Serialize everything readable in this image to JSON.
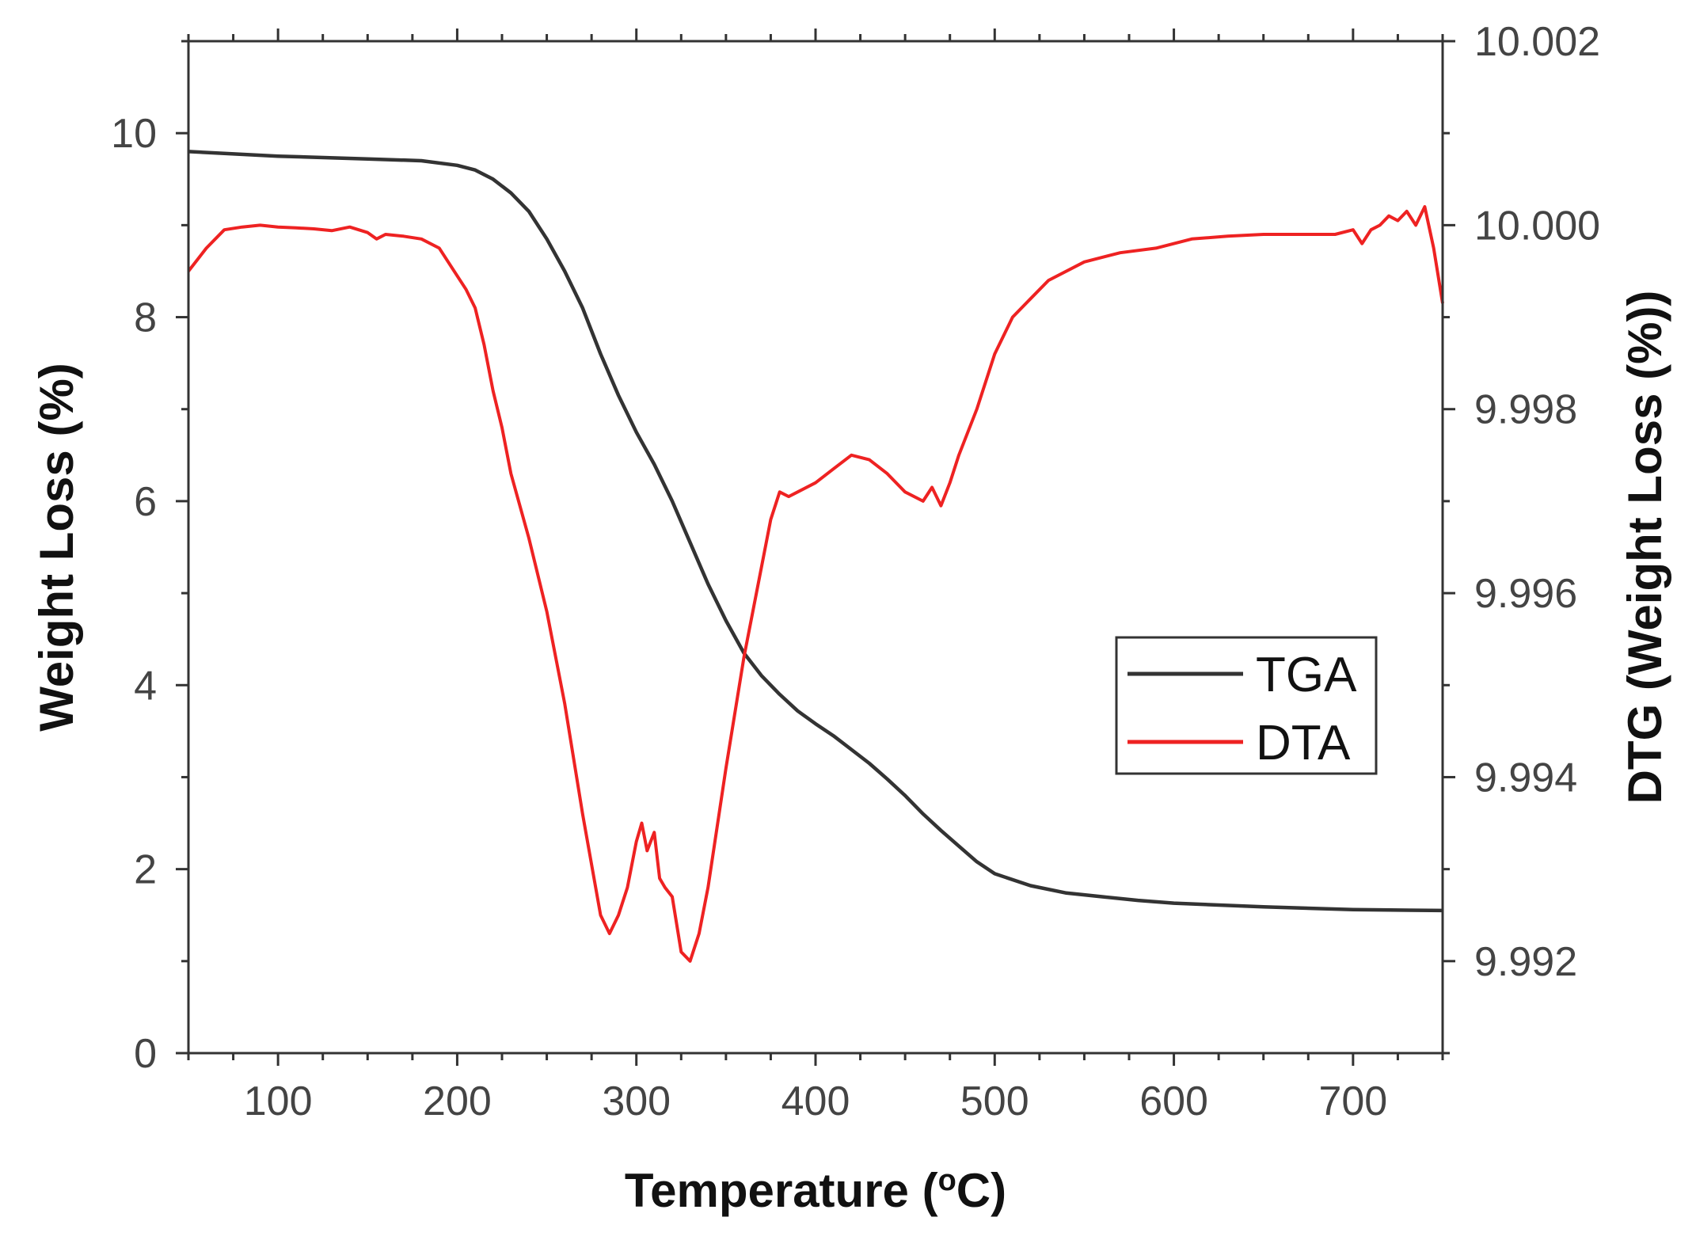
{
  "chart_data": {
    "type": "line",
    "title": "",
    "xlabel": "Temperature (°C)",
    "xlabel_parts": {
      "prefix": "Temperature (",
      "superscript": "o",
      "suffix": "C)"
    },
    "ylabel_left": "Weight Loss (%)",
    "ylabel_right": "DTG (Weight Loss (%))",
    "xlim": [
      50,
      750
    ],
    "ylim_left": [
      0,
      11
    ],
    "ylim_right": [
      9.991,
      10.002
    ],
    "x_ticks": [
      100,
      200,
      300,
      400,
      500,
      600,
      700
    ],
    "x_tick_labels": [
      "100",
      "200",
      "300",
      "400",
      "500",
      "600",
      "700"
    ],
    "y_left_ticks": [
      0,
      2,
      4,
      6,
      8,
      10
    ],
    "y_left_tick_labels": [
      "0",
      "2",
      "4",
      "6",
      "8",
      "10"
    ],
    "y_right_ticks": [
      9.992,
      9.994,
      9.996,
      9.998,
      10.0,
      10.002
    ],
    "y_right_tick_labels": [
      "9.992",
      "9.994",
      "9.996",
      "9.998",
      "10.000",
      "10.002"
    ],
    "grid": false,
    "legend_position": "center-right",
    "series": [
      {
        "name": "TGA",
        "axis": "left",
        "color": "#333333",
        "x": [
          50,
          100,
          150,
          180,
          200,
          210,
          220,
          230,
          240,
          250,
          260,
          270,
          280,
          290,
          300,
          310,
          320,
          330,
          340,
          350,
          360,
          370,
          380,
          390,
          400,
          410,
          420,
          430,
          440,
          450,
          460,
          470,
          480,
          490,
          500,
          520,
          540,
          560,
          580,
          600,
          650,
          700,
          750
        ],
        "y": [
          9.8,
          9.75,
          9.72,
          9.7,
          9.65,
          9.6,
          9.5,
          9.35,
          9.15,
          8.85,
          8.5,
          8.1,
          7.6,
          7.15,
          6.75,
          6.4,
          6.0,
          5.55,
          5.1,
          4.7,
          4.35,
          4.1,
          3.9,
          3.72,
          3.58,
          3.45,
          3.3,
          3.15,
          2.98,
          2.8,
          2.6,
          2.42,
          2.25,
          2.08,
          1.95,
          1.82,
          1.74,
          1.7,
          1.66,
          1.63,
          1.59,
          1.56,
          1.55
        ]
      },
      {
        "name": "DTA",
        "axis": "right",
        "color": "#ee2222",
        "x": [
          50,
          60,
          70,
          80,
          90,
          100,
          110,
          120,
          130,
          140,
          150,
          155,
          160,
          170,
          180,
          190,
          200,
          205,
          210,
          215,
          220,
          225,
          230,
          240,
          250,
          260,
          270,
          280,
          285,
          290,
          295,
          300,
          303,
          306,
          310,
          313,
          316,
          320,
          325,
          330,
          335,
          340,
          350,
          360,
          370,
          375,
          380,
          385,
          390,
          400,
          410,
          420,
          430,
          440,
          450,
          460,
          465,
          470,
          475,
          480,
          490,
          500,
          510,
          520,
          530,
          550,
          570,
          590,
          610,
          630,
          650,
          670,
          690,
          700,
          705,
          710,
          715,
          720,
          725,
          730,
          735,
          740,
          745,
          750
        ],
        "y": [
          9.9995,
          9.99975,
          9.99995,
          9.99998,
          10.0,
          9.99998,
          9.99997,
          9.99996,
          9.99994,
          9.99998,
          9.99992,
          9.99985,
          9.9999,
          9.99988,
          9.99985,
          9.99975,
          9.99945,
          9.9993,
          9.9991,
          9.9987,
          9.9982,
          9.9978,
          9.9973,
          9.9966,
          9.9958,
          9.9948,
          9.9936,
          9.9925,
          9.9923,
          9.9925,
          9.9928,
          9.9933,
          9.9935,
          9.9932,
          9.9934,
          9.9929,
          9.9928,
          9.9927,
          9.9921,
          9.992,
          9.9923,
          9.9928,
          9.9941,
          9.9953,
          9.9963,
          9.9968,
          9.9971,
          9.99705,
          9.9971,
          9.9972,
          9.99735,
          9.9975,
          9.99745,
          9.9973,
          9.9971,
          9.997,
          9.99715,
          9.99695,
          9.9972,
          9.9975,
          9.998,
          9.9986,
          9.999,
          9.9992,
          9.9994,
          9.9996,
          9.9997,
          9.99975,
          9.99985,
          9.99988,
          9.9999,
          9.9999,
          9.9999,
          9.99995,
          9.9998,
          9.99995,
          10.0,
          10.0001,
          10.00005,
          10.00015,
          10.0,
          10.0002,
          9.99975,
          9.99915
        ]
      }
    ]
  }
}
